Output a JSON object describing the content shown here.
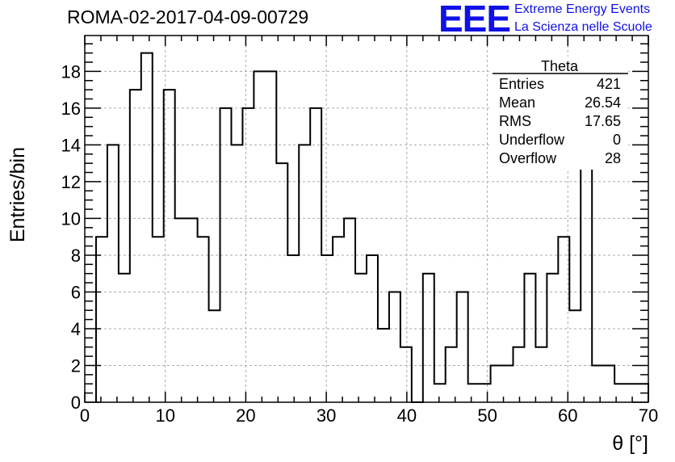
{
  "header": {
    "title": "ROMA-02-2017-04-09-00729",
    "logo_text": "EEE",
    "logo_line1": "Extreme Energy Events",
    "logo_line2": "La Scienza nelle Scuole",
    "brand_color": "#1010e8"
  },
  "stats": {
    "name": "Theta",
    "rows": [
      {
        "label": "Entries",
        "value": "421"
      },
      {
        "label": "Mean",
        "value": "26.54"
      },
      {
        "label": "RMS",
        "value": "17.65"
      },
      {
        "label": "Underflow",
        "value": "0"
      },
      {
        "label": "Overflow",
        "value": "28"
      }
    ]
  },
  "chart_data": {
    "type": "bar",
    "histogram": true,
    "title": "ROMA-02-2017-04-09-00729",
    "xlabel": "θ [°]",
    "ylabel": "Entries/bin",
    "xlim": [
      0,
      70
    ],
    "ylim": [
      0,
      19.95
    ],
    "xticks": [
      0,
      10,
      20,
      30,
      40,
      50,
      60,
      70
    ],
    "yticks": [
      0,
      2,
      4,
      6,
      8,
      10,
      12,
      14,
      16,
      18
    ],
    "grid": true,
    "bin_edges": [
      1.4,
      2.8,
      4.2,
      5.6,
      7.0,
      8.4,
      9.8,
      11.2,
      12.6,
      14.0,
      15.4,
      16.8,
      18.2,
      19.6,
      21.0,
      22.4,
      23.8,
      25.2,
      26.6,
      28.0,
      29.4,
      30.8,
      32.2,
      33.6,
      35.0,
      36.4,
      37.8,
      39.2,
      40.6,
      42.0,
      43.4,
      44.8,
      46.2,
      47.6,
      49.0,
      50.4,
      51.8,
      53.2,
      54.6,
      56.0,
      57.4,
      58.8,
      60.2,
      61.6,
      63.0,
      64.4,
      65.8,
      67.2,
      68.6,
      70.0
    ],
    "values": [
      9,
      14,
      7,
      17,
      19,
      9,
      17,
      10,
      10,
      9,
      5,
      16,
      14,
      16,
      18,
      18,
      13,
      8,
      14,
      16,
      8,
      9,
      10,
      7,
      8,
      4,
      6,
      3,
      0,
      7,
      1,
      3,
      6,
      1,
      1,
      2,
      2,
      3,
      7,
      3,
      7,
      9,
      5,
      15,
      2,
      2,
      1,
      1,
      1
    ],
    "line_color": "#000000",
    "grid_color": "#aaaaaa"
  }
}
